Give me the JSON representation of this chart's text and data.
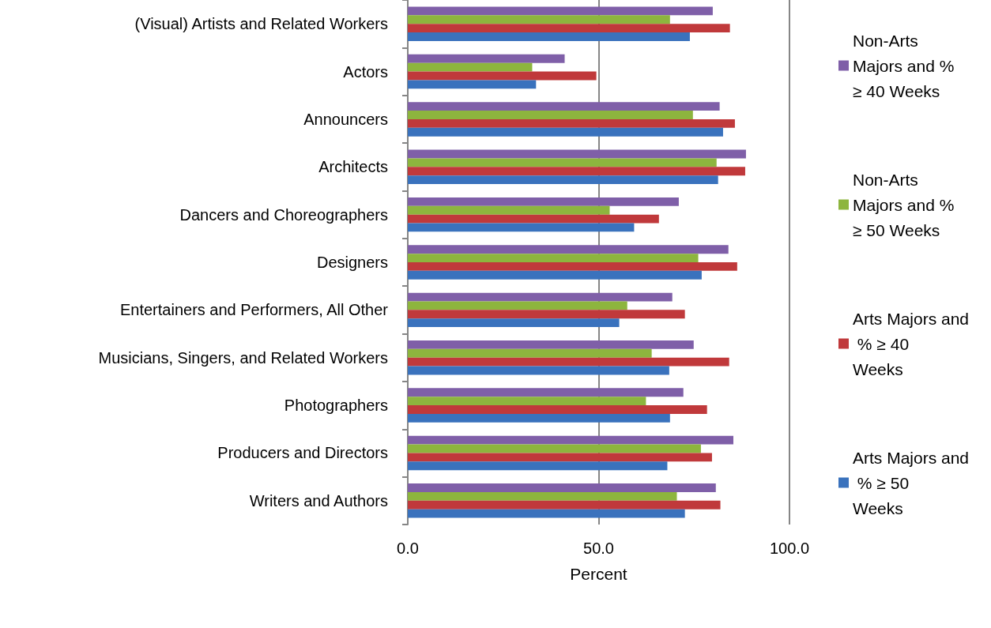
{
  "chart_data": {
    "type": "bar",
    "orientation": "horizontal",
    "xlabel": "Percent",
    "categories": [
      "(Visual) Artists and Related Workers",
      "Actors",
      "Announcers",
      "Architects",
      "Dancers and Choreographers",
      "Designers",
      "Entertainers and Performers, All Other",
      "Musicians, Singers, and Related Workers",
      "Photographers",
      "Producers and Directors",
      "Writers and Authors"
    ],
    "series": [
      {
        "name": "Non-Arts Majors and % ≥ 40 Weeks",
        "color": "#7f5fa8",
        "values": [
          79.9,
          41.1,
          81.7,
          88.6,
          71.0,
          84.0,
          69.3,
          74.9,
          72.2,
          85.3,
          80.7
        ]
      },
      {
        "name": "Non-Arts Majors and % ≥ 50 Weeks",
        "color": "#8db53e",
        "values": [
          68.7,
          32.6,
          74.7,
          80.9,
          52.9,
          76.1,
          57.5,
          63.9,
          62.4,
          76.8,
          70.5
        ]
      },
      {
        "name": "Arts Majors and % ≥ 40 Weeks",
        "color": "#c0393b",
        "values": [
          84.4,
          49.4,
          85.7,
          88.4,
          65.8,
          86.3,
          72.6,
          84.2,
          78.4,
          79.7,
          81.9
        ]
      },
      {
        "name": "Arts Majors and % ≥ 50 Weeks",
        "color": "#3a72bd",
        "values": [
          73.9,
          33.6,
          82.6,
          81.3,
          59.3,
          77.0,
          55.4,
          68.5,
          68.7,
          68.0,
          72.6
        ]
      }
    ],
    "xlim": [
      0,
      100
    ],
    "xticks": [
      {
        "value": 0,
        "label": "0.0"
      },
      {
        "value": 50,
        "label": "50.0"
      },
      {
        "value": 100,
        "label": "100.0"
      }
    ],
    "grid": "x",
    "legend": "right"
  }
}
